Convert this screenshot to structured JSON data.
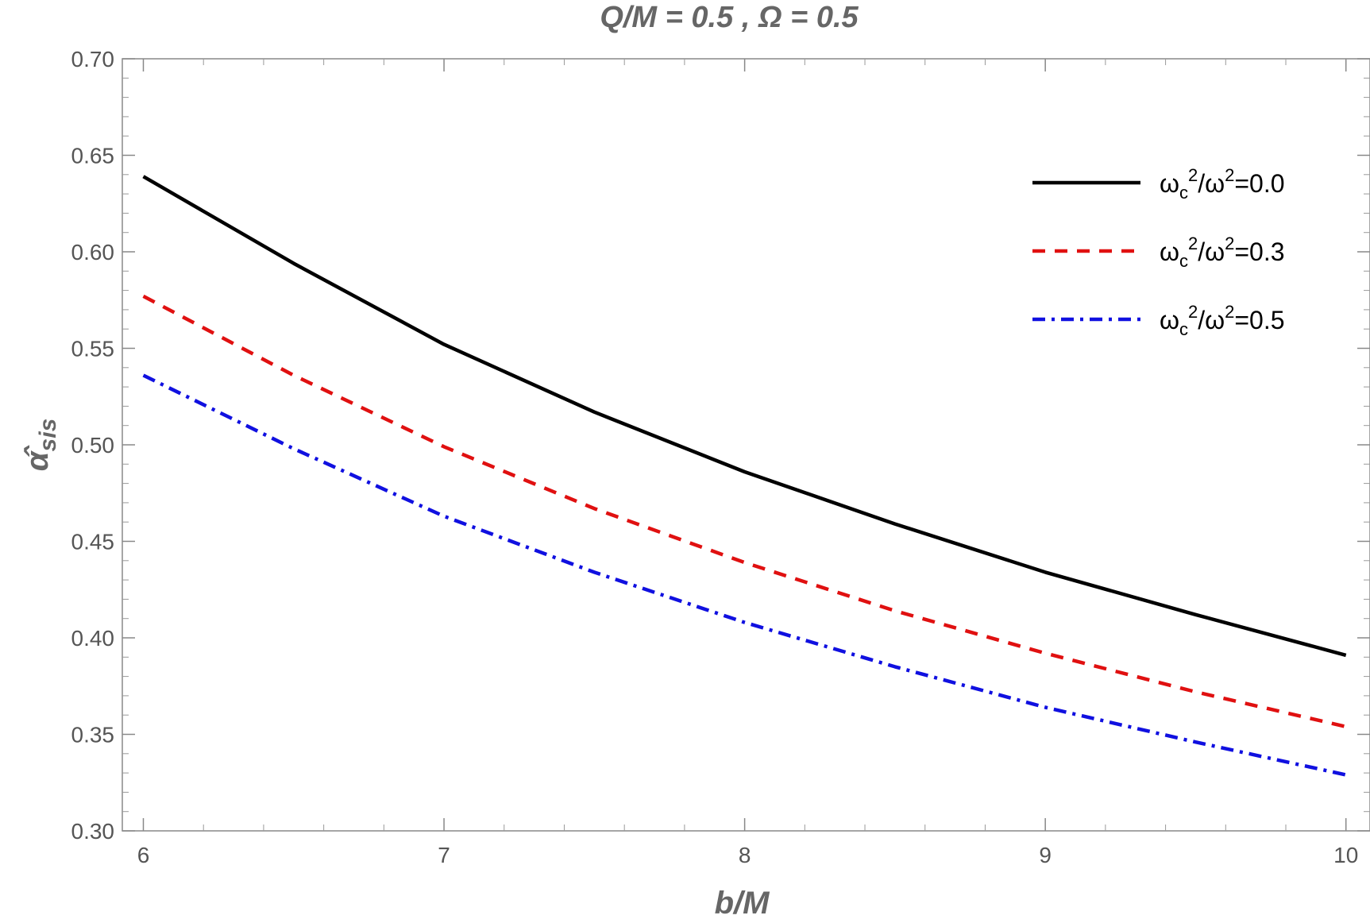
{
  "chart_data": {
    "type": "line",
    "title": "Q/M = 0.5 , Ω = 0.5",
    "xlabel": "b/M",
    "ylabel": "α̂sis",
    "ylabel_main": "α̂",
    "ylabel_sub": "sis",
    "xlim": [
      5.93,
      10.08
    ],
    "ylim": [
      0.3,
      0.7
    ],
    "xticks": [
      6,
      7,
      8,
      9,
      10
    ],
    "xtick_labels": [
      "6",
      "7",
      "8",
      "9",
      "10"
    ],
    "yticks": [
      0.3,
      0.35,
      0.4,
      0.45,
      0.5,
      0.55,
      0.6,
      0.65,
      0.7
    ],
    "ytick_labels": [
      "0.30",
      "0.35",
      "0.40",
      "0.45",
      "0.50",
      "0.55",
      "0.60",
      "0.65",
      "0.70"
    ],
    "grid": false,
    "legend_position": "top-right",
    "x": [
      6.0,
      6.5,
      7.0,
      7.5,
      8.0,
      8.5,
      9.0,
      9.5,
      10.0
    ],
    "series": [
      {
        "name": "ωc2/ω2=0.0",
        "legend_prefix": "ω",
        "legend_sub": "c",
        "legend_sup1": "2",
        "legend_mid": "/ω",
        "legend_sup2": "2",
        "legend_value": "=0.0",
        "color": "#000000",
        "style": "solid",
        "values": [
          0.639,
          0.594,
          0.552,
          0.517,
          0.486,
          0.459,
          0.434,
          0.412,
          0.391
        ]
      },
      {
        "name": "ωc2/ω2=0.3",
        "legend_prefix": "ω",
        "legend_sub": "c",
        "legend_sup1": "2",
        "legend_mid": "/ω",
        "legend_sup2": "2",
        "legend_value": "=0.3",
        "color": "#e01010",
        "style": "dashed",
        "values": [
          0.577,
          0.536,
          0.499,
          0.467,
          0.439,
          0.414,
          0.392,
          0.372,
          0.354
        ]
      },
      {
        "name": "ωc2/ω2=0.5",
        "legend_prefix": "ω",
        "legend_sub": "c",
        "legend_sup1": "2",
        "legend_mid": "/ω",
        "legend_sup2": "2",
        "legend_value": "=0.5",
        "color": "#1010e0",
        "style": "dashdot",
        "values": [
          0.536,
          0.498,
          0.463,
          0.434,
          0.408,
          0.385,
          0.364,
          0.346,
          0.329
        ]
      }
    ]
  }
}
